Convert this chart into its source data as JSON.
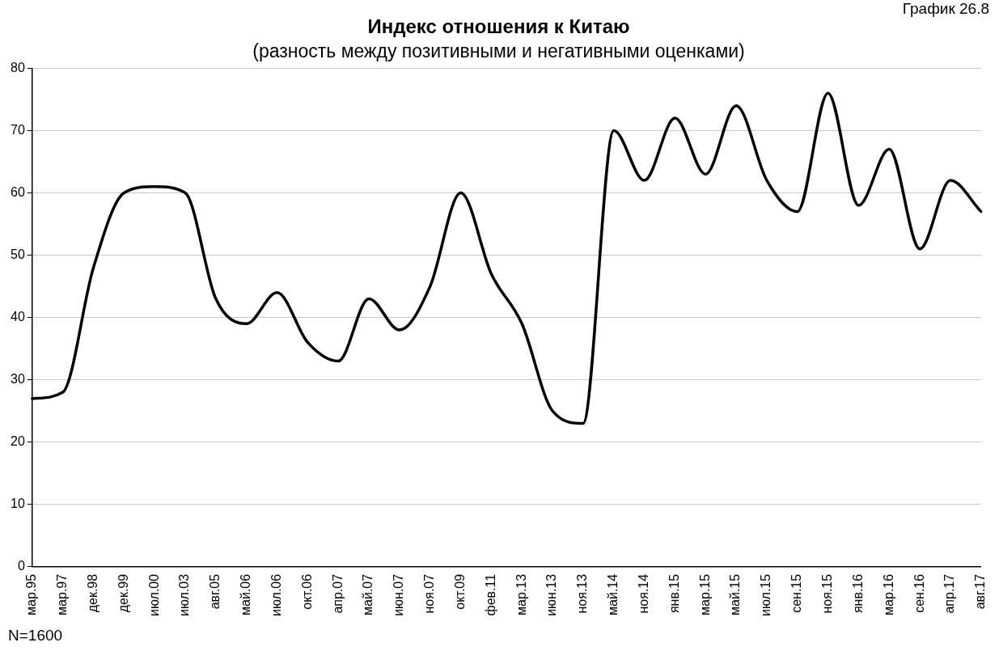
{
  "chart_data": {
    "type": "line",
    "title": "Индекс отношения к Китаю",
    "subtitle": "(разность между позитивными и негативными оценками)",
    "categories": [
      "мар.95",
      "мар.97",
      "дек.98",
      "дек.99",
      "июл.00",
      "июл.03",
      "авг.05",
      "май.06",
      "июл.06",
      "окт.06",
      "апр.07",
      "май.07",
      "июн.07",
      "ноя.07",
      "окт.09",
      "фев.11",
      "мар.13",
      "июн.13",
      "ноя.13",
      "май.14",
      "ноя.14",
      "янв.15",
      "мар.15",
      "май.15",
      "июл.15",
      "сен.15",
      "ноя.15",
      "янв.16",
      "мар.16",
      "сен.16",
      "апр.17",
      "авг.17"
    ],
    "series": [
      {
        "color": "#000000",
        "values": [
          27,
          28,
          48,
          60,
          61,
          60,
          43,
          39,
          44,
          36,
          33,
          43,
          38,
          45,
          60,
          47,
          39,
          25,
          23,
          70,
          62,
          72,
          63,
          74,
          62,
          57,
          76,
          58,
          67,
          51,
          62,
          57
        ]
      }
    ],
    "ylim": [
      0,
      80
    ],
    "yticks": [
      0,
      10,
      20,
      30,
      40,
      50,
      60,
      70,
      80
    ],
    "grid": "y",
    "legend": false,
    "marker": "none",
    "line_style": "solid",
    "annotations": [
      "График 26.8",
      "N=1600"
    ]
  }
}
